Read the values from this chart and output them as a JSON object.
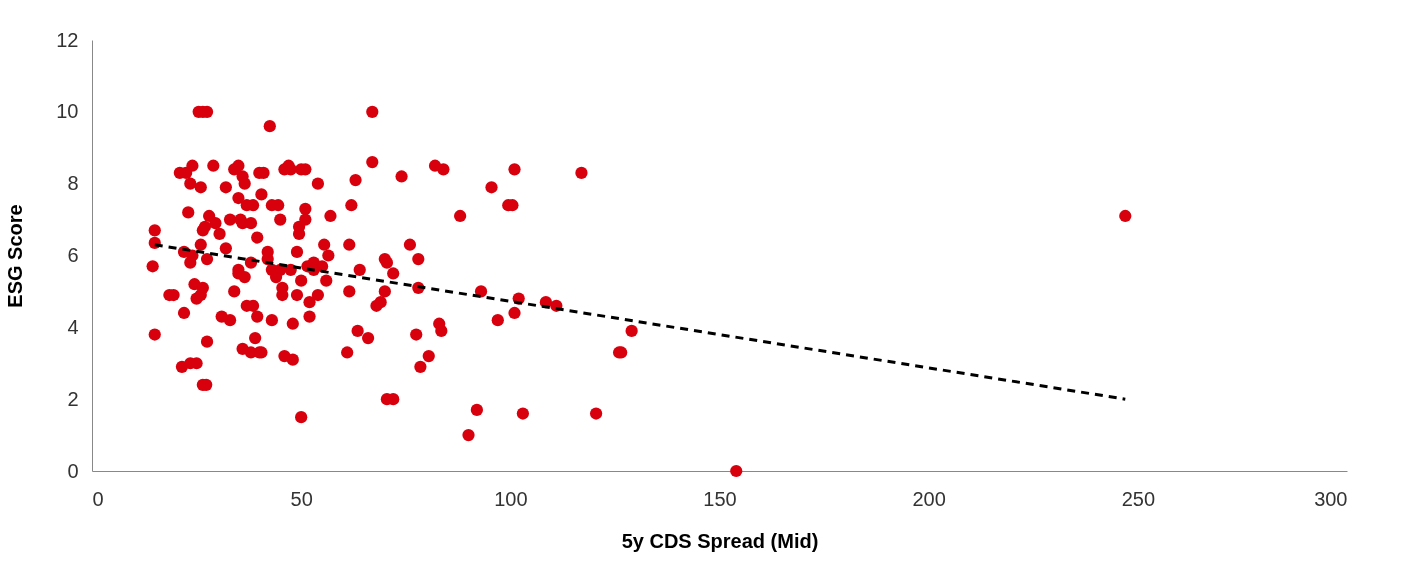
{
  "chart_data": {
    "type": "scatter",
    "xlabel": "5y CDS Spread (Mid)",
    "ylabel": "ESG Score",
    "xlim": [
      0,
      300
    ],
    "xticks": [
      0,
      50,
      100,
      150,
      200,
      250,
      300
    ],
    "ylim": [
      0,
      12
    ],
    "yticks": [
      0,
      2,
      4,
      6,
      8,
      10,
      12
    ],
    "grid": false,
    "series": [
      {
        "color": "#d9000d",
        "marker": "circle",
        "x": [
          15,
          15,
          14.5,
          15,
          18.5,
          19.5,
          21,
          22.5,
          22,
          22,
          21.5,
          23,
          23.5,
          24,
          24,
          23.5,
          24.5,
          25,
          25,
          23.5,
          25.5,
          26.5,
          27.5,
          26,
          26.5,
          27,
          26.5,
          26,
          26.5,
          27.3,
          27.5,
          26,
          28,
          27.5,
          29,
          29.5,
          30.5,
          31,
          32,
          32,
          33,
          33,
          34,
          34,
          35,
          35,
          35.5,
          35,
          35,
          36,
          36.5,
          36,
          36.5,
          36,
          37,
          37,
          38,
          38,
          38.5,
          38,
          38.5,
          39,
          39.5,
          39.5,
          40,
          40,
          40.5,
          40.5,
          41,
          42,
          42,
          42.5,
          43,
          43,
          43,
          44,
          44.5,
          45,
          45,
          45.5,
          45.5,
          46,
          46,
          47,
          47.5,
          47.5,
          48,
          48,
          49,
          49,
          49.5,
          49.5,
          50,
          50,
          50,
          51,
          51,
          51,
          51.5,
          52,
          52,
          53,
          53,
          54,
          54,
          55,
          55.5,
          56,
          56.5,
          57,
          61,
          61.5,
          61.5,
          62,
          63,
          63.5,
          64,
          66,
          67,
          67,
          68,
          69,
          70,
          70,
          70.5,
          70.5,
          72,
          72,
          74,
          76,
          77.5,
          78,
          78,
          78.5,
          80.5,
          82,
          83,
          83.5,
          84,
          88,
          90,
          92,
          93,
          95.5,
          97,
          99.5,
          100.5,
          101,
          101,
          102,
          103,
          108.5,
          111,
          117,
          120.5,
          126,
          126.5,
          129,
          154,
          247
        ],
        "values": [
          6.7,
          6.35,
          5.7,
          3.8,
          4.9,
          4.9,
          8.3,
          8.3,
          6.1,
          4.4,
          2.9,
          7.2,
          8.0,
          8.5,
          6.0,
          5.8,
          5.2,
          4.8,
          3.0,
          3.0,
          10.0,
          10.0,
          10.0,
          6.3,
          6.7,
          6.8,
          5.1,
          4.9,
          2.4,
          2.4,
          3.6,
          7.9,
          7.1,
          5.9,
          8.5,
          6.9,
          6.6,
          4.3,
          7.9,
          6.2,
          7.0,
          4.2,
          8.4,
          5.0,
          8.5,
          7.6,
          7.0,
          5.5,
          5.6,
          8.2,
          8.0,
          6.9,
          5.4,
          3.4,
          7.4,
          4.6,
          6.9,
          5.8,
          4.6,
          3.3,
          7.4,
          3.7,
          6.5,
          4.3,
          8.3,
          3.3,
          7.7,
          3.3,
          8.3,
          6.1,
          5.9,
          9.6,
          7.4,
          5.6,
          4.2,
          5.4,
          7.4,
          7.0,
          5.6,
          4.9,
          5.1,
          8.4,
          3.2,
          8.5,
          8.4,
          5.6,
          4.1,
          3.1,
          6.1,
          4.9,
          6.6,
          6.8,
          8.4,
          5.3,
          1.5,
          8.4,
          7.3,
          7.0,
          5.7,
          4.3,
          4.7,
          5.6,
          5.8,
          8.0,
          4.9,
          5.7,
          6.3,
          5.3,
          6.0,
          7.1,
          3.3,
          6.3,
          5.0,
          7.4,
          8.1,
          3.9,
          5.6,
          3.7,
          10.0,
          8.6,
          4.6,
          4.7,
          5.0,
          5.9,
          5.8,
          2.0,
          2.0,
          5.5,
          8.2,
          6.3,
          3.8,
          5.9,
          5.1,
          2.9,
          3.2,
          8.5,
          4.1,
          3.9,
          8.4,
          7.1,
          1.0,
          1.7,
          5.0,
          7.9,
          4.2,
          7.4,
          7.4,
          8.4,
          4.4,
          4.8,
          1.6,
          4.7,
          4.6,
          8.3,
          1.6,
          3.3,
          3.3,
          3.9,
          0,
          7.1
        ]
      },
      {
        "type": "line",
        "color": "#000000",
        "line_style": "dashed",
        "x": [
          15,
          247
        ],
        "values": [
          6.3,
          2.0
        ]
      }
    ]
  }
}
